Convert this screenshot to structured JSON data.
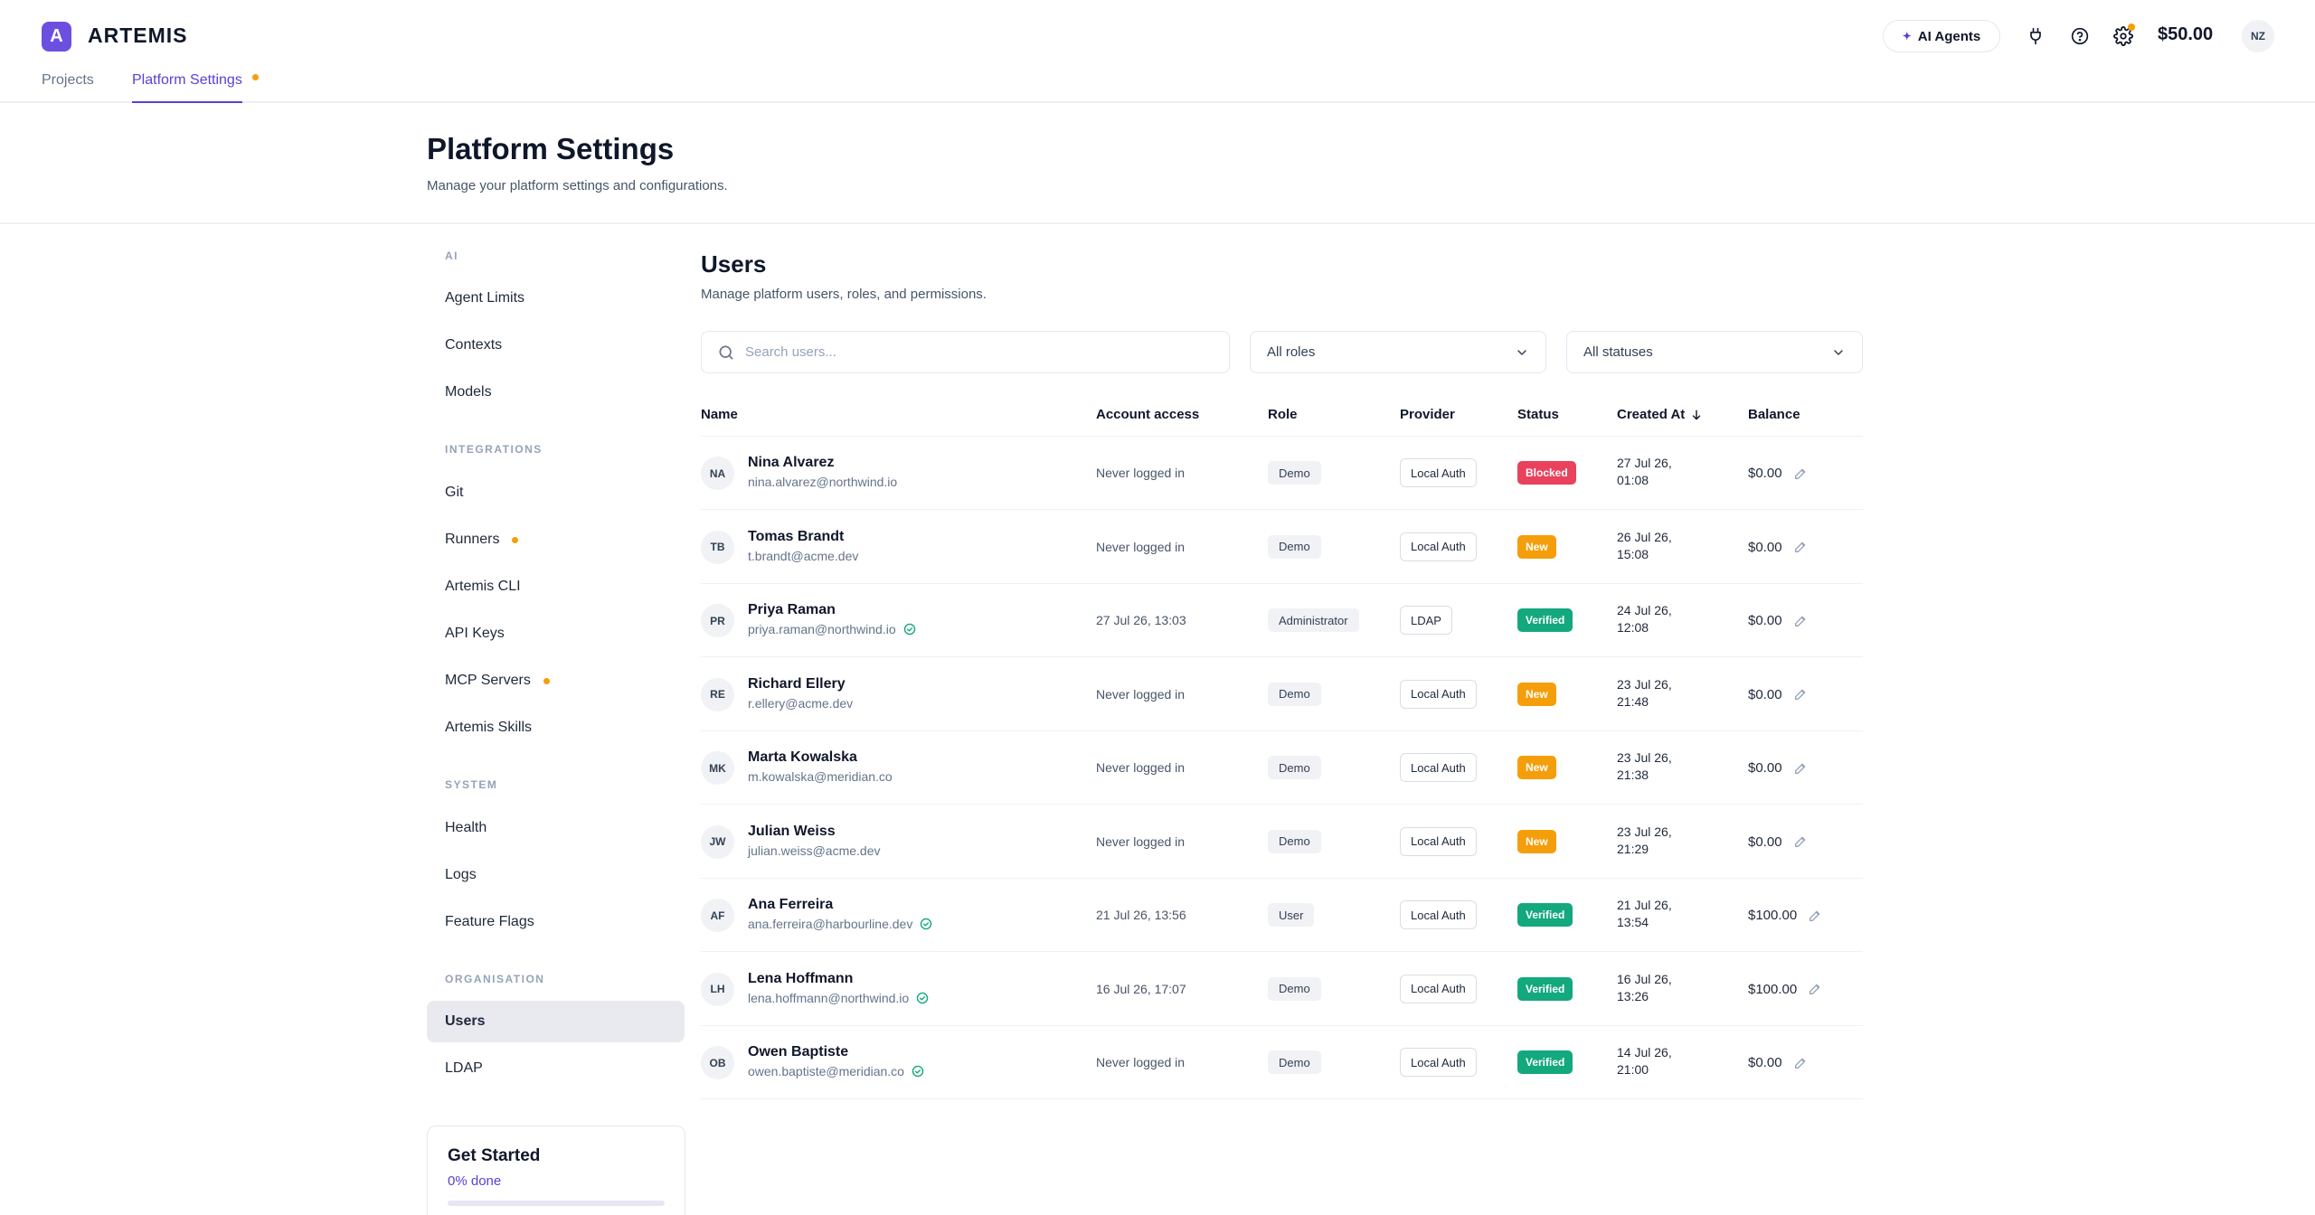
{
  "app": {
    "logo_letter": "A",
    "name": "ARTEMIS",
    "tabs": [
      {
        "label": "Projects"
      },
      {
        "label": "Platform Settings"
      }
    ],
    "ai_agents_label": "AI Agents",
    "balance": "$50.00",
    "user_initials": "NZ",
    "accent_color": "#5b3fd6",
    "header_icons": [
      "plug-icon",
      "help-icon",
      "gear-icon"
    ]
  },
  "page": {
    "title": "Platform Settings",
    "subtitle": "Manage your platform settings and configurations."
  },
  "sidebar": {
    "groups": [
      {
        "label": "AI",
        "items": [
          {
            "label": "Agent Limits"
          },
          {
            "label": "Contexts"
          },
          {
            "label": "Models"
          }
        ]
      },
      {
        "label": "INTEGRATIONS",
        "items": [
          {
            "label": "Git"
          },
          {
            "label": "Runners",
            "dot": true
          },
          {
            "label": "Artemis CLI"
          },
          {
            "label": "API Keys"
          },
          {
            "label": "MCP Servers",
            "dot": true
          },
          {
            "label": "Artemis Skills"
          }
        ]
      },
      {
        "label": "SYSTEM",
        "items": [
          {
            "label": "Health"
          },
          {
            "label": "Logs"
          },
          {
            "label": "Feature Flags"
          }
        ]
      },
      {
        "label": "ORGANISATION",
        "items": [
          {
            "label": "Users",
            "active": true
          },
          {
            "label": "LDAP"
          }
        ]
      }
    ],
    "get_started": {
      "title": "Get Started",
      "progress_label": "0% done",
      "progress": 0
    }
  },
  "users_section": {
    "title": "Users",
    "subtitle": "Manage platform users, roles, and permissions.",
    "search_placeholder": "Search users...",
    "role_filter": "All roles",
    "status_filter": "All statuses",
    "columns": {
      "name": "Name",
      "access": "Account access",
      "role": "Role",
      "provider": "Provider",
      "status": "Status",
      "created": "Created At",
      "balance": "Balance"
    },
    "rows": [
      {
        "initials": "NA",
        "name": "Nina Alvarez",
        "email": "nina.alvarez@northwind.io",
        "verified": false,
        "access": "Never logged in",
        "role": "Demo",
        "provider": "Local Auth",
        "status": "Blocked",
        "status_kind": "blocked",
        "created": "27 Jul 26, 01:08",
        "balance": "$0.00"
      },
      {
        "initials": "TB",
        "name": "Tomas Brandt",
        "email": "t.brandt@acme.dev",
        "verified": false,
        "access": "Never logged in",
        "role": "Demo",
        "provider": "Local Auth",
        "status": "New",
        "status_kind": "new",
        "created": "26 Jul 26, 15:08",
        "balance": "$0.00"
      },
      {
        "initials": "PR",
        "name": "Priya Raman",
        "email": "priya.raman@northwind.io",
        "verified": true,
        "access": "27 Jul 26, 13:03",
        "role": "Administrator",
        "provider": "LDAP",
        "status": "Verified",
        "status_kind": "verified",
        "created": "24 Jul 26, 12:08",
        "balance": "$0.00"
      },
      {
        "initials": "RE",
        "name": "Richard Ellery",
        "email": "r.ellery@acme.dev",
        "verified": false,
        "access": "Never logged in",
        "role": "Demo",
        "provider": "Local Auth",
        "status": "New",
        "status_kind": "new",
        "created": "23 Jul 26, 21:48",
        "balance": "$0.00"
      },
      {
        "initials": "MK",
        "name": "Marta Kowalska",
        "email": "m.kowalska@meridian.co",
        "verified": false,
        "access": "Never logged in",
        "role": "Demo",
        "provider": "Local Auth",
        "status": "New",
        "status_kind": "new",
        "created": "23 Jul 26, 21:38",
        "balance": "$0.00"
      },
      {
        "initials": "JW",
        "name": "Julian Weiss",
        "email": "julian.weiss@acme.dev",
        "verified": false,
        "access": "Never logged in",
        "role": "Demo",
        "provider": "Local Auth",
        "status": "New",
        "status_kind": "new",
        "created": "23 Jul 26, 21:29",
        "balance": "$0.00"
      },
      {
        "initials": "AF",
        "name": "Ana Ferreira",
        "email": "ana.ferreira@harbourline.dev",
        "verified": true,
        "access": "21 Jul 26, 13:56",
        "role": "User",
        "provider": "Local Auth",
        "status": "Verified",
        "status_kind": "verified",
        "created": "21 Jul 26, 13:54",
        "balance": "$100.00"
      },
      {
        "initials": "LH",
        "name": "Lena Hoffmann",
        "email": "lena.hoffmann@northwind.io",
        "verified": true,
        "access": "16 Jul 26, 17:07",
        "role": "Demo",
        "provider": "Local Auth",
        "status": "Verified",
        "status_kind": "verified",
        "created": "16 Jul 26, 13:26",
        "balance": "$100.00"
      },
      {
        "initials": "OB",
        "name": "Owen Baptiste",
        "email": "owen.baptiste@meridian.co",
        "verified": true,
        "access": "Never logged in",
        "role": "Demo",
        "provider": "Local Auth",
        "status": "Verified",
        "status_kind": "verified",
        "created": "14 Jul 26, 21:00",
        "balance": "$0.00"
      }
    ]
  }
}
